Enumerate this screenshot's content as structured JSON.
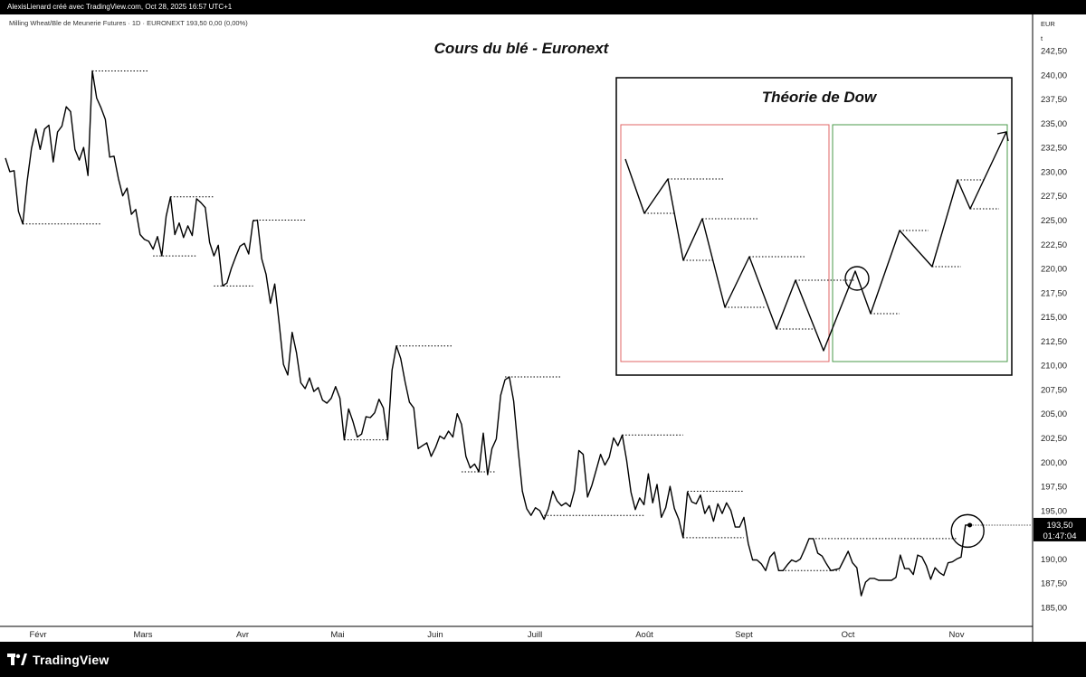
{
  "header": {
    "attribution": "AlexisLienard créé avec TradingView.com, Oct 28, 2025 16:57 UTC+1"
  },
  "chart_data": {
    "type": "line",
    "title": "Cours du blé - Euronext",
    "symbol_line": "Milling Wheat/Ble de Meunerie Futures · 1D · EURONEXT  193,50  0,00 (0,00%)",
    "currency": "EUR",
    "unit": "t",
    "ylim": [
      183.7,
      245.6
    ],
    "y_ticks": [
      "242,50",
      "240,00",
      "237,50",
      "235,00",
      "232,50",
      "230,00",
      "227,50",
      "225,00",
      "222,50",
      "220,00",
      "217,50",
      "215,00",
      "212,50",
      "210,00",
      "207,50",
      "205,00",
      "202,50",
      "200,00",
      "197,50",
      "195,00",
      "190,00",
      "187,50",
      "185,00"
    ],
    "x_ticks": [
      "Févr",
      "Mars",
      "Avr",
      "Mai",
      "Juin",
      "Juill",
      "Août",
      "Sept",
      "Oct",
      "Nov"
    ],
    "last_price": "193,50",
    "countdown": "01:47:04",
    "line_color": "#000000",
    "grid": false,
    "series": [
      {
        "values": [
          [
            0,
            231.4
          ],
          [
            1,
            230.0
          ],
          [
            2,
            230.1
          ],
          [
            3,
            225.9
          ],
          [
            4,
            224.6
          ],
          [
            5,
            229.0
          ],
          [
            6,
            232.4
          ],
          [
            7,
            234.4
          ],
          [
            8,
            232.3
          ],
          [
            9,
            234.4
          ],
          [
            10,
            234.8
          ],
          [
            11,
            231.0
          ],
          [
            12,
            234.1
          ],
          [
            13,
            234.7
          ],
          [
            14,
            236.7
          ],
          [
            15,
            236.2
          ],
          [
            16,
            232.3
          ],
          [
            17,
            231.2
          ],
          [
            18,
            232.5
          ],
          [
            19,
            229.6
          ],
          [
            20,
            240.4
          ],
          [
            21,
            237.6
          ],
          [
            22,
            236.6
          ],
          [
            23,
            235.4
          ],
          [
            24,
            231.5
          ],
          [
            25,
            231.6
          ],
          [
            26,
            229.3
          ],
          [
            27,
            227.5
          ],
          [
            28,
            228.3
          ],
          [
            29,
            225.6
          ],
          [
            30,
            226.1
          ],
          [
            31,
            223.5
          ],
          [
            32,
            223.0
          ],
          [
            33,
            222.8
          ],
          [
            34,
            222.0
          ],
          [
            35,
            223.3
          ],
          [
            36,
            221.3
          ],
          [
            37,
            225.4
          ],
          [
            38,
            227.4
          ],
          [
            39,
            223.5
          ],
          [
            40,
            224.7
          ],
          [
            41,
            223.2
          ],
          [
            42,
            224.4
          ],
          [
            43,
            223.4
          ],
          [
            44,
            227.2
          ],
          [
            45,
            226.8
          ],
          [
            46,
            226.3
          ],
          [
            47,
            222.7
          ],
          [
            48,
            221.3
          ],
          [
            49,
            222.4
          ],
          [
            50,
            218.2
          ],
          [
            51,
            218.5
          ],
          [
            52,
            220.0
          ],
          [
            53,
            221.2
          ],
          [
            54,
            222.3
          ],
          [
            55,
            222.6
          ],
          [
            56,
            221.5
          ],
          [
            57,
            224.9
          ],
          [
            58,
            225.0
          ],
          [
            59,
            221.0
          ],
          [
            60,
            219.4
          ],
          [
            61,
            216.4
          ],
          [
            62,
            218.4
          ],
          [
            63,
            214.4
          ],
          [
            64,
            210.1
          ],
          [
            65,
            209.0
          ],
          [
            66,
            213.4
          ],
          [
            67,
            211.3
          ],
          [
            68,
            208.2
          ],
          [
            69,
            207.6
          ],
          [
            70,
            208.7
          ],
          [
            71,
            207.3
          ],
          [
            72,
            207.7
          ],
          [
            73,
            206.4
          ],
          [
            74,
            206.1
          ],
          [
            75,
            206.6
          ],
          [
            76,
            207.8
          ],
          [
            77,
            206.6
          ],
          [
            78,
            202.3
          ],
          [
            79,
            205.5
          ],
          [
            80,
            204.2
          ],
          [
            81,
            202.6
          ],
          [
            82,
            202.9
          ],
          [
            83,
            204.7
          ],
          [
            84,
            204.6
          ],
          [
            85,
            205.1
          ],
          [
            86,
            206.5
          ],
          [
            87,
            205.6
          ],
          [
            88,
            202.3
          ],
          [
            89,
            209.5
          ],
          [
            90,
            212.0
          ],
          [
            91,
            210.7
          ],
          [
            92,
            208.3
          ],
          [
            93,
            206.2
          ],
          [
            94,
            205.6
          ],
          [
            95,
            201.4
          ],
          [
            96,
            201.7
          ],
          [
            97,
            202.0
          ],
          [
            98,
            200.6
          ],
          [
            99,
            201.5
          ],
          [
            100,
            202.7
          ],
          [
            101,
            202.4
          ],
          [
            102,
            203.2
          ],
          [
            103,
            202.6
          ],
          [
            104,
            205.0
          ],
          [
            105,
            203.9
          ],
          [
            106,
            200.6
          ],
          [
            107,
            199.4
          ],
          [
            108,
            199.8
          ],
          [
            109,
            199.0
          ],
          [
            110,
            203.0
          ],
          [
            111,
            198.7
          ],
          [
            112,
            201.4
          ],
          [
            113,
            202.4
          ],
          [
            114,
            206.9
          ],
          [
            115,
            208.5
          ],
          [
            116,
            208.8
          ],
          [
            117,
            206.3
          ],
          [
            118,
            201.4
          ],
          [
            119,
            197.0
          ],
          [
            120,
            195.2
          ],
          [
            121,
            194.5
          ],
          [
            122,
            195.3
          ],
          [
            123,
            195.0
          ],
          [
            124,
            194.1
          ],
          [
            125,
            195.2
          ],
          [
            126,
            197.0
          ],
          [
            127,
            196.0
          ],
          [
            128,
            195.5
          ],
          [
            129,
            195.8
          ],
          [
            130,
            195.4
          ],
          [
            131,
            197.1
          ],
          [
            132,
            201.2
          ],
          [
            133,
            200.8
          ],
          [
            134,
            196.4
          ],
          [
            135,
            197.6
          ],
          [
            136,
            199.2
          ],
          [
            137,
            200.8
          ],
          [
            138,
            199.7
          ],
          [
            139,
            200.5
          ],
          [
            140,
            202.5
          ],
          [
            141,
            201.7
          ],
          [
            142,
            202.8
          ],
          [
            143,
            200.2
          ],
          [
            144,
            196.9
          ],
          [
            145,
            195.1
          ],
          [
            146,
            196.3
          ],
          [
            147,
            195.6
          ],
          [
            148,
            198.8
          ],
          [
            149,
            195.8
          ],
          [
            150,
            197.7
          ],
          [
            151,
            194.3
          ],
          [
            152,
            195.3
          ],
          [
            153,
            197.5
          ],
          [
            154,
            195.2
          ],
          [
            155,
            194.1
          ],
          [
            156,
            192.2
          ],
          [
            157,
            196.9
          ],
          [
            158,
            195.9
          ],
          [
            159,
            195.7
          ],
          [
            160,
            196.6
          ],
          [
            161,
            194.7
          ],
          [
            162,
            195.5
          ],
          [
            163,
            193.9
          ],
          [
            164,
            195.7
          ],
          [
            165,
            194.7
          ],
          [
            166,
            195.8
          ],
          [
            167,
            195.0
          ],
          [
            168,
            193.3
          ],
          [
            169,
            193.3
          ],
          [
            170,
            194.3
          ],
          [
            171,
            191.6
          ],
          [
            172,
            189.9
          ],
          [
            173,
            189.9
          ],
          [
            174,
            189.5
          ],
          [
            175,
            188.8
          ],
          [
            176,
            190.2
          ],
          [
            177,
            190.7
          ],
          [
            178,
            188.8
          ],
          [
            179,
            188.8
          ],
          [
            180,
            189.4
          ],
          [
            181,
            189.9
          ],
          [
            182,
            189.7
          ],
          [
            183,
            190.0
          ],
          [
            184,
            191.0
          ],
          [
            185,
            192.1
          ],
          [
            186,
            192.1
          ],
          [
            187,
            190.6
          ],
          [
            188,
            190.3
          ],
          [
            189,
            189.5
          ],
          [
            190,
            188.8
          ],
          [
            191,
            188.9
          ],
          [
            192,
            189.0
          ],
          [
            193,
            189.9
          ],
          [
            194,
            190.8
          ],
          [
            195,
            189.6
          ],
          [
            196,
            189.1
          ],
          [
            197,
            186.2
          ],
          [
            198,
            187.6
          ],
          [
            199,
            188.0
          ],
          [
            200,
            188.0
          ],
          [
            201,
            187.8
          ],
          [
            202,
            187.8
          ],
          [
            203,
            187.8
          ],
          [
            204,
            187.8
          ],
          [
            205,
            188.1
          ],
          [
            206,
            190.4
          ],
          [
            207,
            189.0
          ],
          [
            208,
            189.0
          ],
          [
            209,
            188.4
          ],
          [
            210,
            190.4
          ],
          [
            211,
            190.2
          ],
          [
            212,
            189.3
          ],
          [
            213,
            187.9
          ],
          [
            214,
            189.1
          ],
          [
            215,
            188.6
          ],
          [
            216,
            188.3
          ],
          [
            217,
            189.6
          ],
          [
            218,
            189.7
          ],
          [
            219,
            190.0
          ],
          [
            220,
            190.2
          ],
          [
            221,
            193.5
          ],
          [
            222,
            193.5
          ]
        ]
      }
    ],
    "levels": [
      {
        "x": [
          4,
          22
        ],
        "y": 224.6
      },
      {
        "x": [
          20,
          33
        ],
        "y": 240.4
      },
      {
        "x": [
          34,
          44
        ],
        "y": 221.3
      },
      {
        "x": [
          38,
          48
        ],
        "y": 227.4
      },
      {
        "x": [
          48,
          57
        ],
        "y": 218.2
      },
      {
        "x": [
          57,
          69
        ],
        "y": 225.0
      },
      {
        "x": [
          78,
          88
        ],
        "y": 202.3
      },
      {
        "x": [
          90,
          103
        ],
        "y": 212.0
      },
      {
        "x": [
          105,
          113
        ],
        "y": 199.0
      },
      {
        "x": [
          115,
          128
        ],
        "y": 208.8
      },
      {
        "x": [
          124,
          147
        ],
        "y": 194.5
      },
      {
        "x": [
          142,
          156
        ],
        "y": 202.8
      },
      {
        "x": [
          156,
          170
        ],
        "y": 192.2
      },
      {
        "x": [
          157,
          170
        ],
        "y": 197.0
      },
      {
        "x": [
          178,
          192
        ],
        "y": 188.8
      },
      {
        "x": [
          185,
          219
        ],
        "y": 192.1
      }
    ],
    "annotations": {
      "circle_at": [
        221.5,
        192.9
      ],
      "inset_title": "Théorie de Dow"
    }
  }
}
